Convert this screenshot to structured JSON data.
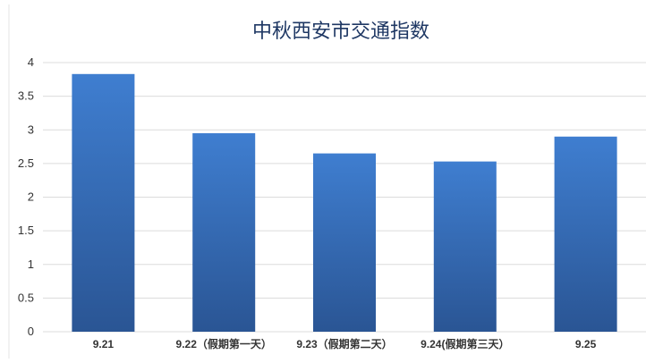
{
  "chart_data": {
    "type": "bar",
    "title": "中秋西安市交通指数",
    "categories": [
      "9.21",
      "9.22（假期第一天）",
      "9.23（假期第二天）",
      "9.24(假期第三天）",
      "9.25"
    ],
    "values": [
      3.83,
      2.95,
      2.65,
      2.53,
      2.9
    ],
    "xlabel": "",
    "ylabel": "",
    "ylim": [
      0,
      4
    ],
    "yticks": [
      "0",
      "0.5",
      "1",
      "1.5",
      "2",
      "2.5",
      "3",
      "3.5",
      "4"
    ],
    "grid": true,
    "legend": "none",
    "colors": {
      "bar_top": "#3f7ed0",
      "bar_bottom": "#2a5594",
      "grid": "#dcdcdc",
      "title": "#1f3864"
    }
  }
}
